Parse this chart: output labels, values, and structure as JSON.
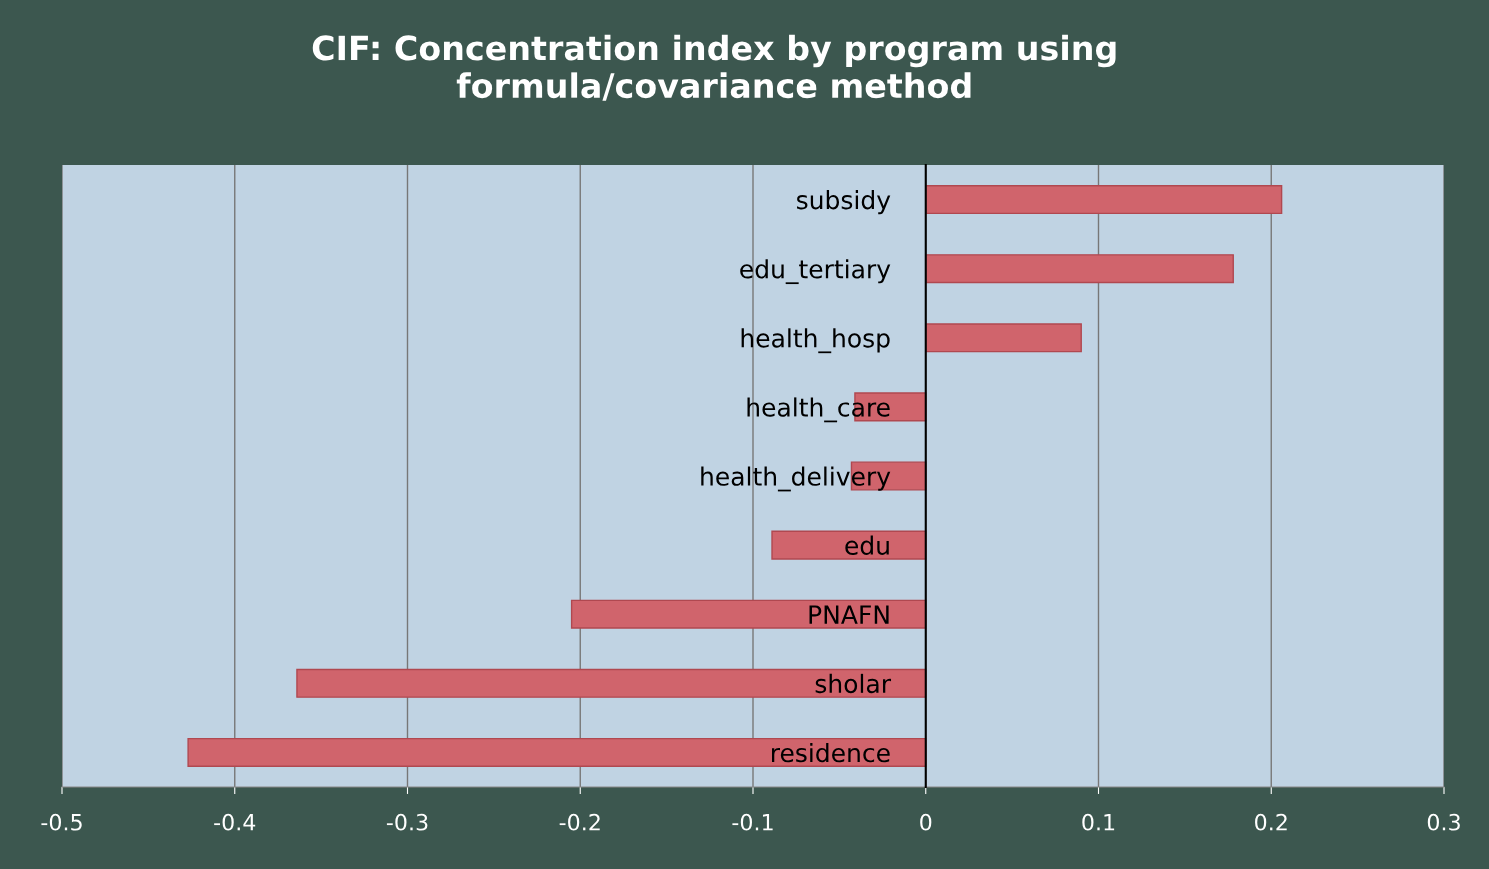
{
  "chart_data": {
    "type": "bar",
    "orientation": "horizontal",
    "title": "CIF: Concentration index by program using\nformula/covariance method",
    "categories": [
      "subsidy",
      "edu_tertiary",
      "health_hosp",
      "health_care",
      "health_delivery",
      "edu",
      "PNAFN",
      "sholar",
      "residence"
    ],
    "values": [
      0.206,
      0.178,
      0.09,
      -0.041,
      -0.043,
      -0.089,
      -0.205,
      -0.364,
      -0.427
    ],
    "color": "#d0646c",
    "xlim": [
      -0.5,
      0.3
    ],
    "xticks": [
      -0.5,
      -0.4,
      -0.3,
      -0.2,
      -0.1,
      0,
      0.1,
      0.2,
      0.3
    ],
    "grid": "x",
    "legend": false
  }
}
